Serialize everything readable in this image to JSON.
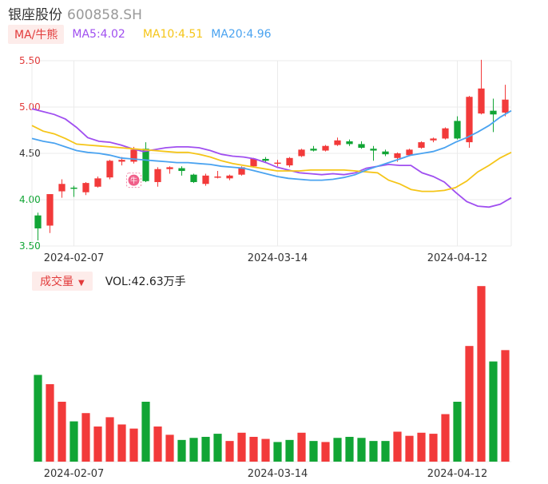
{
  "header": {
    "stock_name": "银座股份",
    "stock_code": "600858.SH"
  },
  "ma_bar": {
    "toggle_label": "MA/牛熊",
    "ma5": {
      "label": "MA5:4.02",
      "color": "#a04ff0"
    },
    "ma10": {
      "label": "MA10:4.51",
      "color": "#f5c518"
    },
    "ma20": {
      "label": "MA20:4.96",
      "color": "#4aa3f0"
    }
  },
  "volume_bar": {
    "toggle_label": "成交量",
    "caret": "▼",
    "value_label": "VOL:42.63万手"
  },
  "colors": {
    "up": "#f23a3a",
    "down": "#11a535",
    "grid": "#ebebeb",
    "axis_text": "#333333"
  },
  "chart_data": {
    "type": "candlestick",
    "x_tick_labels": [
      "2024-02-07",
      "2024-03-14",
      "2024-04-12"
    ],
    "x_tick_indices": [
      3,
      20,
      35
    ],
    "y_tick_labels": [
      "5.50",
      "5.00",
      "4.50",
      "4.00",
      "3.50"
    ],
    "y_tick_values": [
      5.5,
      5.0,
      4.5,
      4.0,
      3.5
    ],
    "y_tick_colors": [
      "#e23b3b",
      "#e23b3b",
      "#333333",
      "#11a535",
      "#11a535"
    ],
    "ylim": [
      3.5,
      5.5
    ],
    "marker": {
      "icon": "bull-icon",
      "glyph": "牛",
      "index": 8
    },
    "candles": [
      {
        "o": 3.83,
        "h": 3.86,
        "l": 3.56,
        "c": 3.69
      },
      {
        "o": 3.72,
        "h": 4.06,
        "l": 3.64,
        "c": 4.06
      },
      {
        "o": 4.09,
        "h": 4.22,
        "l": 4.02,
        "c": 4.17
      },
      {
        "o": 4.13,
        "h": 4.15,
        "l": 4.03,
        "c": 4.12
      },
      {
        "o": 4.08,
        "h": 4.19,
        "l": 4.05,
        "c": 4.18
      },
      {
        "o": 4.14,
        "h": 4.25,
        "l": 4.13,
        "c": 4.23
      },
      {
        "o": 4.24,
        "h": 4.43,
        "l": 4.22,
        "c": 4.42
      },
      {
        "o": 4.41,
        "h": 4.46,
        "l": 4.37,
        "c": 4.43
      },
      {
        "o": 4.41,
        "h": 4.57,
        "l": 4.39,
        "c": 4.54
      },
      {
        "o": 4.55,
        "h": 4.62,
        "l": 4.19,
        "c": 4.2
      },
      {
        "o": 4.19,
        "h": 4.35,
        "l": 4.14,
        "c": 4.33
      },
      {
        "o": 4.33,
        "h": 4.36,
        "l": 4.28,
        "c": 4.35
      },
      {
        "o": 4.34,
        "h": 4.36,
        "l": 4.26,
        "c": 4.31
      },
      {
        "o": 4.27,
        "h": 4.28,
        "l": 4.18,
        "c": 4.19
      },
      {
        "o": 4.17,
        "h": 4.28,
        "l": 4.15,
        "c": 4.26
      },
      {
        "o": 4.25,
        "h": 4.31,
        "l": 4.23,
        "c": 4.25
      },
      {
        "o": 4.23,
        "h": 4.27,
        "l": 4.21,
        "c": 4.26
      },
      {
        "o": 4.27,
        "h": 4.36,
        "l": 4.26,
        "c": 4.35
      },
      {
        "o": 4.36,
        "h": 4.45,
        "l": 4.35,
        "c": 4.44
      },
      {
        "o": 4.44,
        "h": 4.46,
        "l": 4.4,
        "c": 4.42
      },
      {
        "o": 4.4,
        "h": 4.43,
        "l": 4.36,
        "c": 4.4
      },
      {
        "o": 4.37,
        "h": 4.46,
        "l": 4.35,
        "c": 4.45
      },
      {
        "o": 4.47,
        "h": 4.55,
        "l": 4.46,
        "c": 4.54
      },
      {
        "o": 4.55,
        "h": 4.58,
        "l": 4.52,
        "c": 4.53
      },
      {
        "o": 4.53,
        "h": 4.59,
        "l": 4.52,
        "c": 4.58
      },
      {
        "o": 4.59,
        "h": 4.67,
        "l": 4.58,
        "c": 4.64
      },
      {
        "o": 4.63,
        "h": 4.65,
        "l": 4.58,
        "c": 4.6
      },
      {
        "o": 4.6,
        "h": 4.63,
        "l": 4.55,
        "c": 4.56
      },
      {
        "o": 4.55,
        "h": 4.58,
        "l": 4.42,
        "c": 4.53
      },
      {
        "o": 4.52,
        "h": 4.54,
        "l": 4.47,
        "c": 4.49
      },
      {
        "o": 4.45,
        "h": 4.51,
        "l": 4.41,
        "c": 4.5
      },
      {
        "o": 4.48,
        "h": 4.55,
        "l": 4.47,
        "c": 4.54
      },
      {
        "o": 4.56,
        "h": 4.63,
        "l": 4.55,
        "c": 4.62
      },
      {
        "o": 4.64,
        "h": 4.67,
        "l": 4.62,
        "c": 4.66
      },
      {
        "o": 4.66,
        "h": 4.78,
        "l": 4.65,
        "c": 4.77
      },
      {
        "o": 4.85,
        "h": 4.9,
        "l": 4.65,
        "c": 4.66
      },
      {
        "o": 4.62,
        "h": 5.12,
        "l": 4.56,
        "c": 5.11
      },
      {
        "o": 4.93,
        "h": 5.51,
        "l": 4.92,
        "c": 5.2
      },
      {
        "o": 4.96,
        "h": 5.09,
        "l": 4.73,
        "c": 4.92
      },
      {
        "o": 4.94,
        "h": 5.24,
        "l": 4.9,
        "c": 5.08
      }
    ],
    "volumes": [
      42,
      37.5,
      29,
      19.5,
      23.5,
      17,
      21.5,
      18,
      16,
      29,
      17,
      13,
      10.5,
      11.5,
      12,
      13.5,
      10,
      14,
      12,
      11,
      9.5,
      10.5,
      14,
      10,
      9.5,
      11.5,
      12,
      11.5,
      10,
      10,
      14.5,
      12.5,
      14,
      13.5,
      23,
      29,
      56,
      85,
      48.5,
      54
    ],
    "volume_colors": [
      "down",
      "up",
      "up",
      "down",
      "up",
      "up",
      "up",
      "up",
      "up",
      "down",
      "up",
      "up",
      "down",
      "down",
      "down",
      "down",
      "up",
      "up",
      "up",
      "up",
      "down",
      "down",
      "up",
      "down",
      "up",
      "down",
      "down",
      "down",
      "down",
      "down",
      "up",
      "up",
      "up",
      "up",
      "up",
      "down",
      "up",
      "up",
      "down",
      "up"
    ],
    "series": [
      {
        "name": "MA5",
        "color": "#a04ff0",
        "values": [
          4.98,
          4.95,
          4.92,
          4.87,
          4.78,
          4.67,
          4.63,
          4.62,
          4.59,
          4.55,
          4.52,
          4.54,
          4.56,
          4.57,
          4.57,
          4.56,
          4.53,
          4.49,
          4.47,
          4.46,
          4.44,
          4.4,
          4.35,
          4.32,
          4.29,
          4.28,
          4.27,
          4.28,
          4.27,
          4.29,
          4.34,
          4.36,
          4.38,
          4.37,
          4.37,
          4.29,
          4.25,
          4.19,
          4.08,
          3.98,
          3.93,
          3.92,
          3.95,
          4.02
        ]
      },
      {
        "name": "MA10",
        "color": "#f5c518",
        "values": [
          4.8,
          4.74,
          4.71,
          4.66,
          4.6,
          4.59,
          4.58,
          4.57,
          4.56,
          4.55,
          4.54,
          4.53,
          4.52,
          4.51,
          4.51,
          4.49,
          4.46,
          4.42,
          4.39,
          4.37,
          4.35,
          4.33,
          4.31,
          4.31,
          4.31,
          4.32,
          4.32,
          4.32,
          4.32,
          4.31,
          4.3,
          4.29,
          4.21,
          4.17,
          4.11,
          4.09,
          4.09,
          4.1,
          4.13,
          4.2,
          4.3,
          4.37,
          4.45,
          4.51
        ]
      },
      {
        "name": "MA20",
        "color": "#4aa3f0",
        "values": [
          4.66,
          4.63,
          4.61,
          4.57,
          4.53,
          4.51,
          4.5,
          4.48,
          4.45,
          4.44,
          4.43,
          4.42,
          4.41,
          4.4,
          4.4,
          4.39,
          4.38,
          4.36,
          4.35,
          4.34,
          4.31,
          4.28,
          4.25,
          4.23,
          4.22,
          4.21,
          4.21,
          4.22,
          4.24,
          4.27,
          4.32,
          4.36,
          4.4,
          4.44,
          4.48,
          4.5,
          4.52,
          4.56,
          4.62,
          4.67,
          4.73,
          4.8,
          4.89,
          4.96
        ]
      }
    ]
  }
}
